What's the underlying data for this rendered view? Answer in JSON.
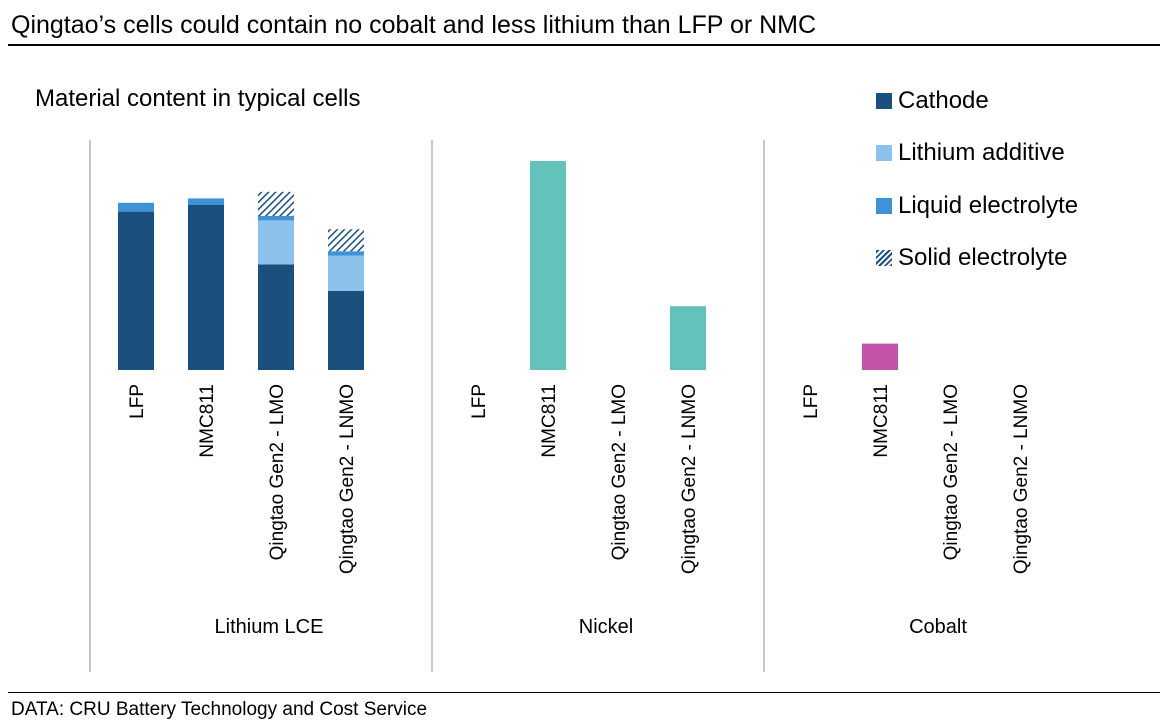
{
  "header": {
    "title": "Qingtao’s cells could contain no cobalt and less lithium than LFP or NMC",
    "subtitle": "Material content in typical cells"
  },
  "footer": {
    "source": "DATA: CRU Battery Technology and Cost Service"
  },
  "legend": {
    "items": [
      {
        "label": "Cathode",
        "color": "#1b4f7e",
        "pattern": "solid"
      },
      {
        "label": "Lithium additive",
        "color": "#8bc1ea",
        "pattern": "solid"
      },
      {
        "label": "Liquid electrolyte",
        "color": "#3e92d6",
        "pattern": "solid"
      },
      {
        "label": "Solid electrolyte",
        "color": "#1b4f7e",
        "pattern": "hatch"
      }
    ]
  },
  "chart_data": {
    "type": "bar",
    "stacked": true,
    "title": "Material content in typical cells",
    "xlabel": "",
    "ylabel": "",
    "ylim": [
      0,
      1.0
    ],
    "legend_position": "right",
    "grid": false,
    "categories": [
      "LFP",
      "NMC811",
      "Qingtao Gen2 - LMO",
      "Qingtao Gen2 - LNMO"
    ],
    "panels": [
      {
        "name": "Lithium LCE",
        "series": [
          {
            "name": "Cathode",
            "color": "#1b4f7e",
            "values": [
              0.72,
              0.75,
              0.48,
              0.36
            ]
          },
          {
            "name": "Lithium additive",
            "color": "#8bc1ea",
            "values": [
              0,
              0,
              0.2,
              0.16
            ]
          },
          {
            "name": "Liquid electrolyte",
            "color": "#3e92d6",
            "values": [
              0.04,
              0.03,
              0.02,
              0.02
            ]
          },
          {
            "name": "Solid electrolyte",
            "color": "#1b4f7e",
            "values": [
              0,
              0,
              0.11,
              0.1
            ]
          }
        ]
      },
      {
        "name": "Nickel",
        "series": [
          {
            "name": "Nickel",
            "color": "#63c2b9",
            "values": [
              0,
              0.95,
              0,
              0.29
            ]
          }
        ]
      },
      {
        "name": "Cobalt",
        "series": [
          {
            "name": "Cobalt",
            "color": "#c255aa",
            "values": [
              0,
              0.12,
              0,
              0
            ]
          }
        ]
      }
    ]
  }
}
